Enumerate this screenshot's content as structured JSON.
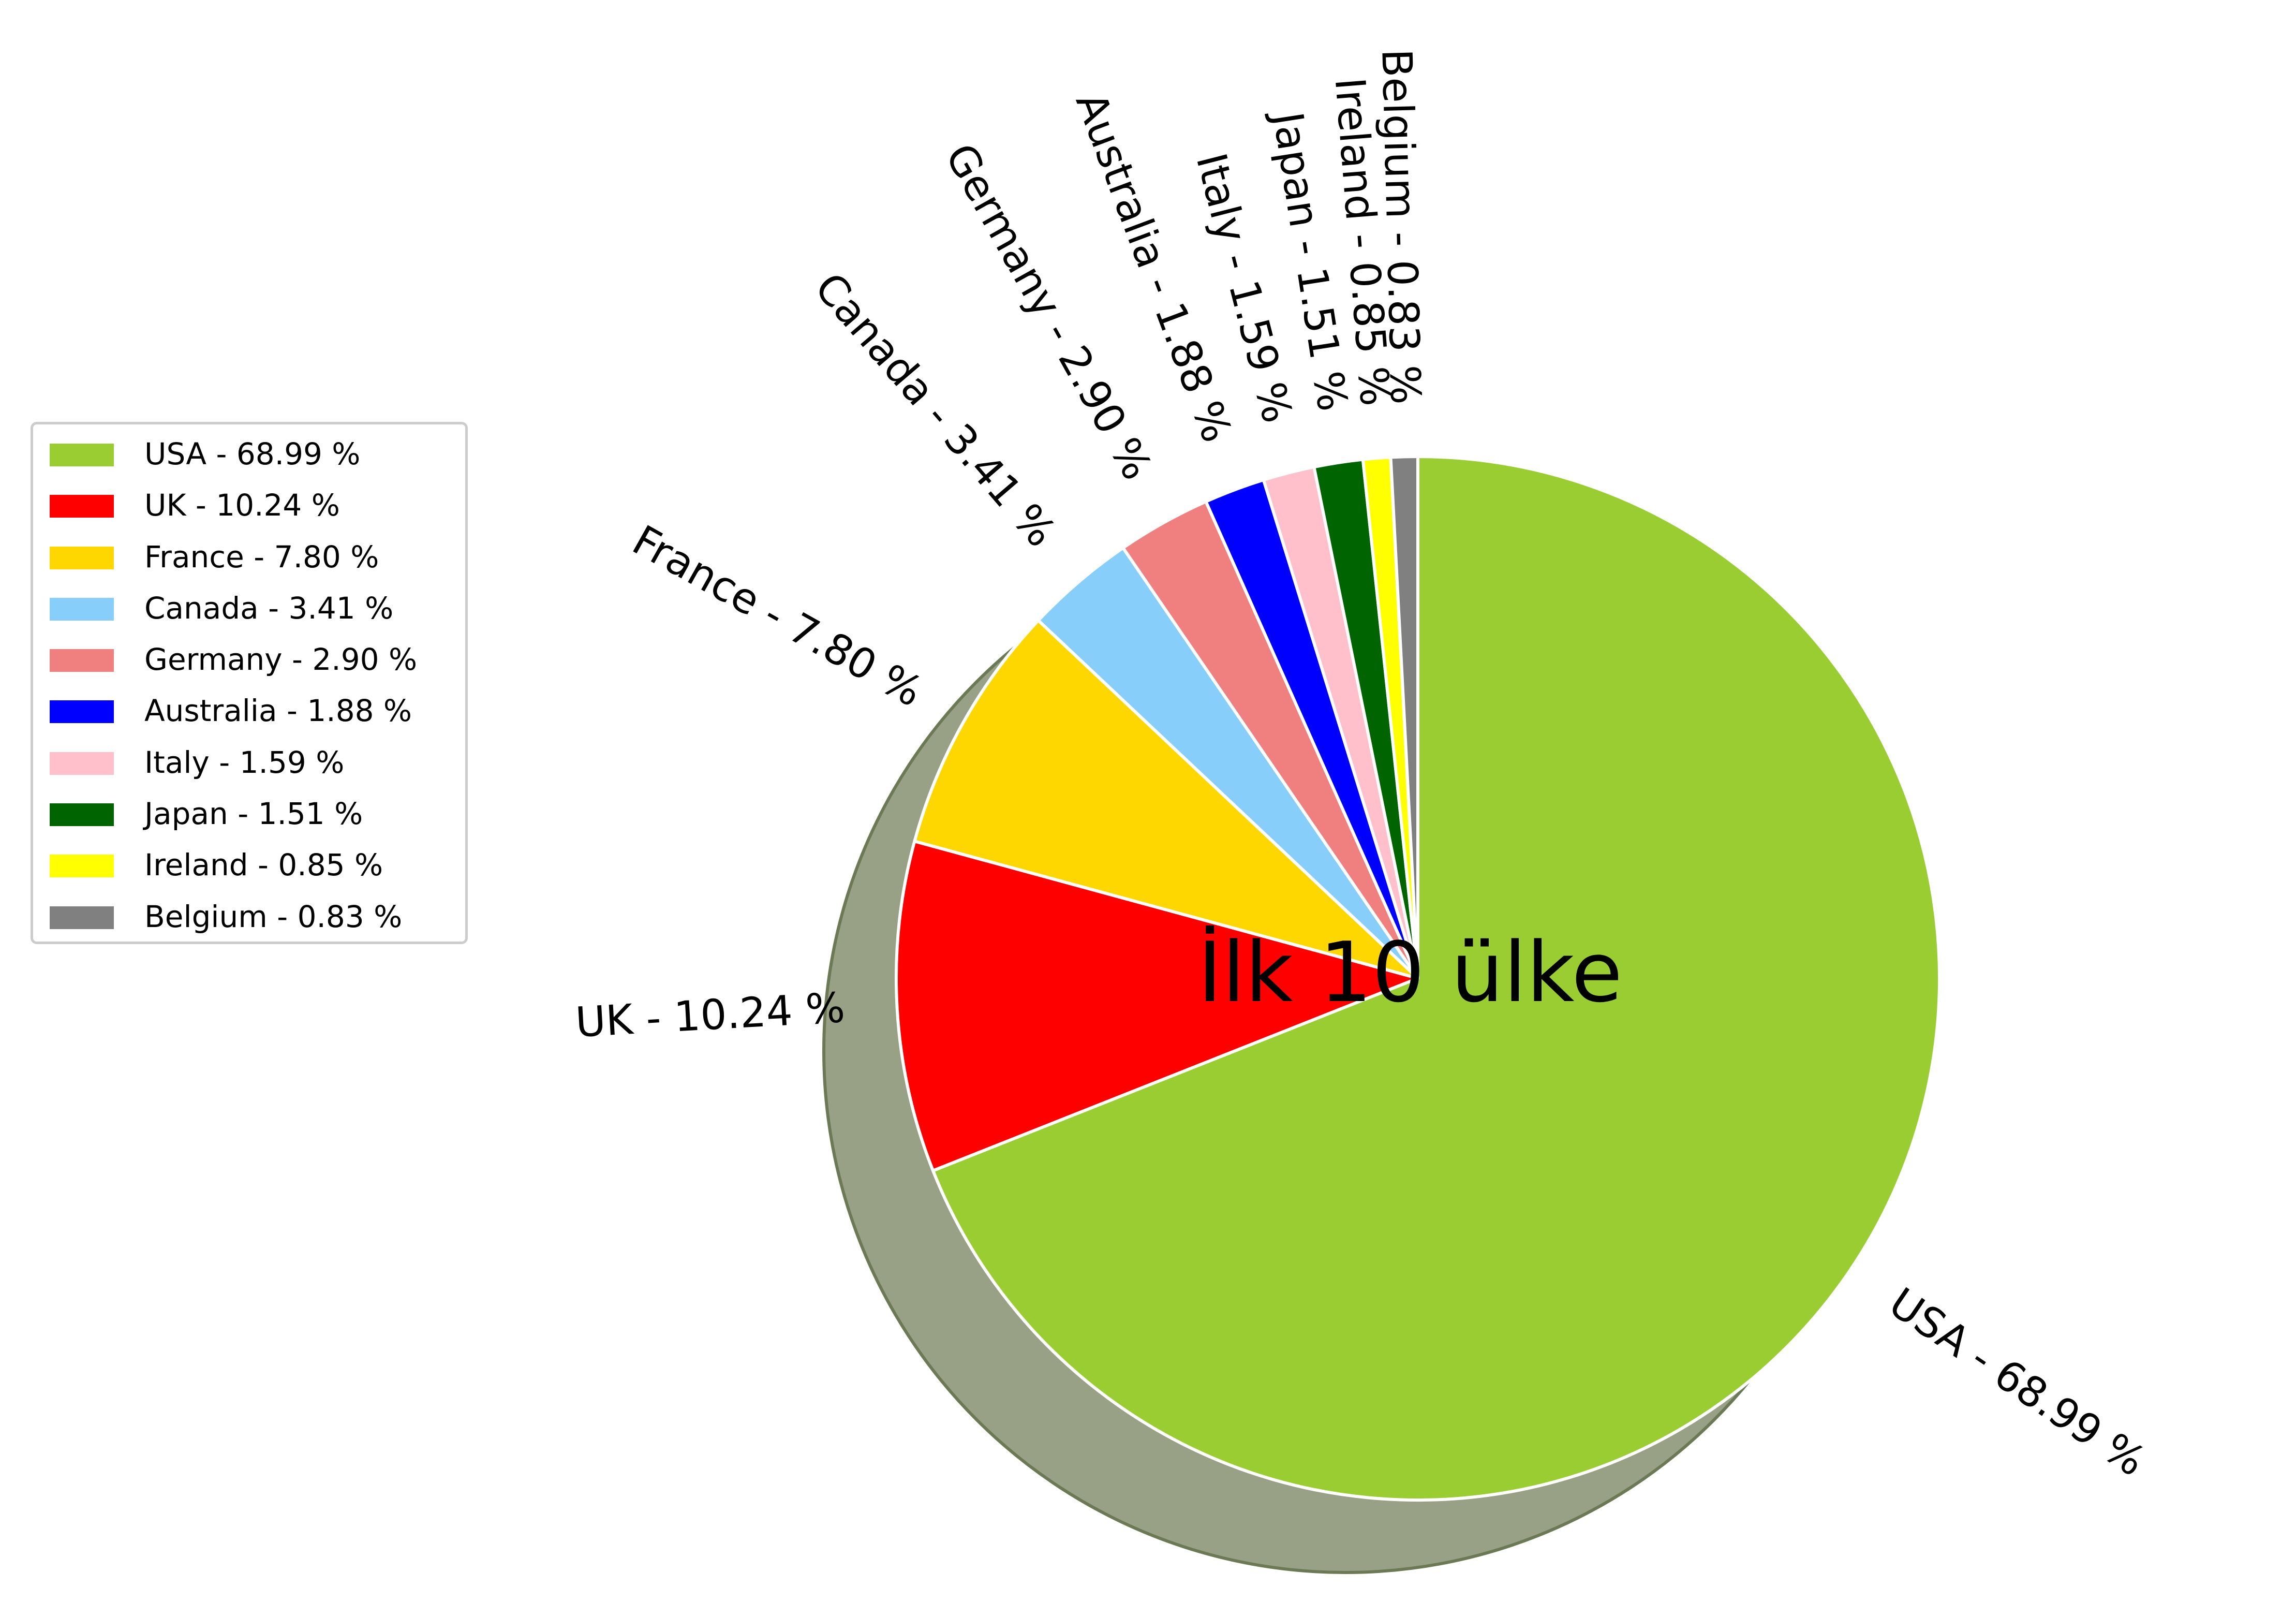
{
  "chart_data": {
    "type": "pie",
    "center_text": "İlk 10 ülke",
    "slices": [
      {
        "label": "USA - 68.99 %",
        "value": 68.99,
        "color": "#9ACD32"
      },
      {
        "label": "UK - 10.24 %",
        "value": 10.24,
        "color": "#FF0000"
      },
      {
        "label": "France - 7.80 %",
        "value": 7.8,
        "color": "#FFD700"
      },
      {
        "label": "Canada - 3.41 %",
        "value": 3.41,
        "color": "#87CEFA"
      },
      {
        "label": "Germany - 2.90 %",
        "value": 2.9,
        "color": "#F08080"
      },
      {
        "label": "Australia - 1.88 %",
        "value": 1.88,
        "color": "#0000FF"
      },
      {
        "label": "Italy - 1.59 %",
        "value": 1.59,
        "color": "#FFC0CB"
      },
      {
        "label": "Japan - 1.51 %",
        "value": 1.51,
        "color": "#006400"
      },
      {
        "label": "Ireland - 0.85 %",
        "value": 0.85,
        "color": "#FFFF00"
      },
      {
        "label": "Belgium - 0.83 %",
        "value": 0.83,
        "color": "#808080"
      }
    ],
    "start_angle_deg": 90,
    "direction": "clockwise",
    "shadow": true,
    "shadow_color": "#98A086",
    "wedge_edge_color": "#FFFFFF",
    "legend_position": "left",
    "legend_entries": [
      "USA - 68.99 %",
      "UK - 10.24 %",
      "France - 7.80 %",
      "Canada - 3.41 %",
      "Germany - 2.90 %",
      "Australia - 1.88 %",
      "Italy - 1.59 %",
      "Japan - 1.51 %",
      "Ireland - 0.85 %",
      "Belgium - 0.83 %"
    ]
  }
}
